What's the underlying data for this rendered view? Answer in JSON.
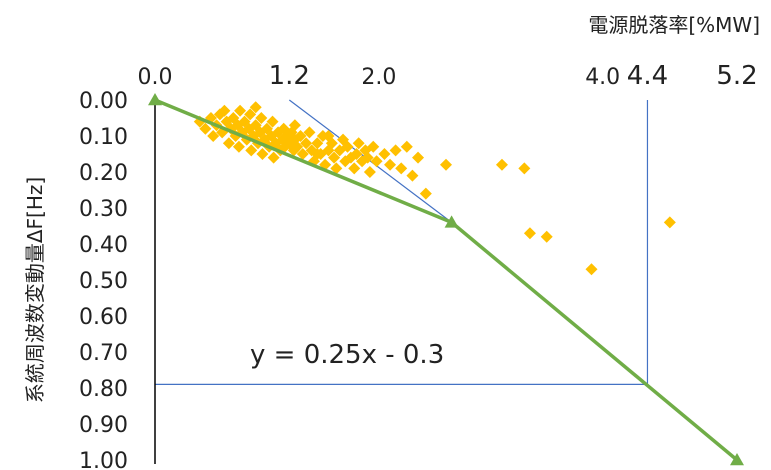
{
  "chart_data": {
    "type": "scatter",
    "xlabel": "電源脱落率[%MW]",
    "ylabel": "系統周波数変動量ΔF[Hz]",
    "xlim": [
      0,
      5.2
    ],
    "ylim": [
      0,
      1.0
    ],
    "x_axis_position": "top",
    "y_axis_inverted": true,
    "x_ticks": [
      {
        "value": 0.0,
        "label": "0.0",
        "emphasis": false
      },
      {
        "value": 1.2,
        "label": "1.2",
        "emphasis": true
      },
      {
        "value": 2.0,
        "label": "2.0",
        "emphasis": false
      },
      {
        "value": 4.0,
        "label": "4.0",
        "emphasis": false
      },
      {
        "value": 4.4,
        "label": "4.4",
        "emphasis": true
      },
      {
        "value": 5.2,
        "label": "5.2",
        "emphasis": true
      }
    ],
    "y_ticks": [
      {
        "value": 0.0,
        "label": "0.00"
      },
      {
        "value": 0.1,
        "label": "0.10"
      },
      {
        "value": 0.2,
        "label": "0.20"
      },
      {
        "value": 0.3,
        "label": "0.30"
      },
      {
        "value": 0.4,
        "label": "0.40"
      },
      {
        "value": 0.5,
        "label": "0.50"
      },
      {
        "value": 0.6,
        "label": "0.60"
      },
      {
        "value": 0.7,
        "label": "0.70"
      },
      {
        "value": 0.8,
        "label": "0.80"
      },
      {
        "value": 0.9,
        "label": "0.90"
      },
      {
        "value": 1.0,
        "label": "1.00"
      }
    ],
    "equation": "y = 0.25x - 0.3",
    "colors": {
      "points": "#FFC000",
      "fit": "#70AD47",
      "reference": "#4472C4",
      "axis": "#000000"
    },
    "points": [
      [
        0.4,
        0.06
      ],
      [
        0.45,
        0.08
      ],
      [
        0.5,
        0.05
      ],
      [
        0.52,
        0.1
      ],
      [
        0.55,
        0.07
      ],
      [
        0.58,
        0.04
      ],
      [
        0.6,
        0.09
      ],
      [
        0.62,
        0.03
      ],
      [
        0.64,
        0.06
      ],
      [
        0.66,
        0.12
      ],
      [
        0.68,
        0.08
      ],
      [
        0.7,
        0.05
      ],
      [
        0.72,
        0.1
      ],
      [
        0.74,
        0.07
      ],
      [
        0.75,
        0.13
      ],
      [
        0.76,
        0.03
      ],
      [
        0.78,
        0.09
      ],
      [
        0.8,
        0.06
      ],
      [
        0.82,
        0.11
      ],
      [
        0.84,
        0.08
      ],
      [
        0.85,
        0.04
      ],
      [
        0.86,
        0.14
      ],
      [
        0.88,
        0.1
      ],
      [
        0.9,
        0.07
      ],
      [
        0.92,
        0.12
      ],
      [
        0.94,
        0.09
      ],
      [
        0.95,
        0.05
      ],
      [
        0.96,
        0.15
      ],
      [
        0.98,
        0.11
      ],
      [
        1.0,
        0.08
      ],
      [
        1.02,
        0.13
      ],
      [
        1.04,
        0.1
      ],
      [
        1.05,
        0.06
      ],
      [
        1.06,
        0.16
      ],
      [
        1.08,
        0.12
      ],
      [
        1.1,
        0.09
      ],
      [
        1.12,
        0.14
      ],
      [
        1.14,
        0.11
      ],
      [
        1.15,
        0.08
      ],
      [
        1.16,
        0.13
      ],
      [
        1.18,
        0.1
      ],
      [
        1.2,
        0.12
      ],
      [
        1.22,
        0.09
      ],
      [
        1.24,
        0.14
      ],
      [
        1.25,
        0.11
      ],
      [
        1.27,
        0.13
      ],
      [
        1.3,
        0.1
      ],
      [
        1.32,
        0.15
      ],
      [
        1.35,
        0.12
      ],
      [
        1.38,
        0.09
      ],
      [
        1.4,
        0.14
      ],
      [
        1.42,
        0.17
      ],
      [
        1.45,
        0.12
      ],
      [
        1.48,
        0.15
      ],
      [
        1.5,
        0.1
      ],
      [
        1.52,
        0.18
      ],
      [
        1.55,
        0.14
      ],
      [
        1.58,
        0.12
      ],
      [
        1.6,
        0.16
      ],
      [
        1.62,
        0.19
      ],
      [
        1.65,
        0.14
      ],
      [
        1.68,
        0.11
      ],
      [
        1.7,
        0.17
      ],
      [
        1.72,
        0.13
      ],
      [
        1.75,
        0.16
      ],
      [
        1.78,
        0.19
      ],
      [
        1.8,
        0.15
      ],
      [
        1.82,
        0.12
      ],
      [
        1.85,
        0.17
      ],
      [
        1.88,
        0.14
      ],
      [
        1.9,
        0.16
      ],
      [
        1.92,
        0.2
      ],
      [
        1.95,
        0.13
      ],
      [
        1.98,
        0.17
      ],
      [
        2.05,
        0.15
      ],
      [
        2.1,
        0.18
      ],
      [
        2.15,
        0.14
      ],
      [
        2.2,
        0.19
      ],
      [
        2.25,
        0.13
      ],
      [
        2.3,
        0.21
      ],
      [
        2.35,
        0.16
      ],
      [
        2.42,
        0.26
      ],
      [
        2.6,
        0.18
      ],
      [
        3.1,
        0.18
      ],
      [
        3.3,
        0.19
      ],
      [
        3.35,
        0.37
      ],
      [
        3.5,
        0.38
      ],
      [
        3.9,
        0.47
      ],
      [
        4.6,
        0.34
      ],
      [
        0.9,
        0.02
      ],
      [
        1.55,
        0.1
      ],
      [
        1.25,
        0.07
      ],
      [
        1.45,
        0.15
      ]
    ],
    "fit_line": [
      [
        0.0,
        0.0
      ],
      [
        2.65,
        0.34
      ],
      [
        5.2,
        1.0
      ]
    ],
    "reference_lines": [
      {
        "from": [
          1.2,
          0.0
        ],
        "to": [
          2.65,
          0.34
        ]
      },
      {
        "from": [
          4.4,
          0.0
        ],
        "to": [
          4.4,
          0.79
        ]
      },
      {
        "from": [
          0.0,
          0.79
        ],
        "to": [
          4.4,
          0.79
        ]
      }
    ]
  }
}
